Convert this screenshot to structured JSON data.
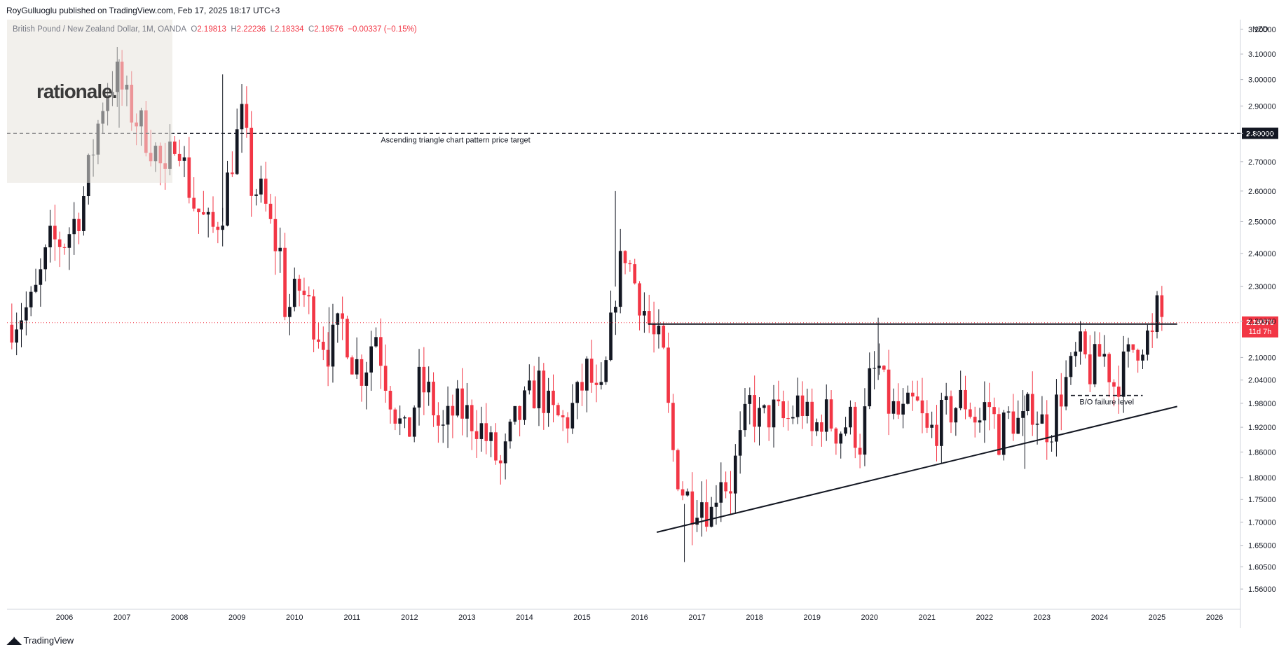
{
  "publisher_line": "RoyGulluoglu published on TradingView.com, Feb 17, 2025 18:17 UTC+3",
  "symbol": {
    "name": "British Pound / New Zealand Dollar, 1M, OANDA",
    "open_label": "O",
    "open": "2.19813",
    "high_label": "H",
    "high": "2.22236",
    "low_label": "L",
    "low": "2.18334",
    "close_label": "C",
    "close": "2.19576",
    "change": "−0.00337 (−0.15%)"
  },
  "currency": "NZD",
  "watermark": "rationale.",
  "footer": "TradingView",
  "colors": {
    "up": "#131722",
    "down": "#f23645",
    "accent": "#f23645",
    "grid": "#e0e3eb"
  },
  "chart_data": {
    "type": "candlestick",
    "y_scale": "log",
    "ylim": [
      1.52,
      3.24
    ],
    "xlim": [
      2005.0,
      2026.45
    ],
    "y_ticks": [
      "3.20000",
      "3.10000",
      "3.00000",
      "2.90000",
      "2.80000",
      "2.70000",
      "2.60000",
      "2.50000",
      "2.40000",
      "2.30000",
      "2.20000",
      "2.10000",
      "2.04000",
      "1.98000",
      "1.92000",
      "1.86000",
      "1.80000",
      "1.75000",
      "1.70000",
      "1.65000",
      "1.60500",
      "1.56000"
    ],
    "x_ticks": [
      "2006",
      "2007",
      "2008",
      "2009",
      "2010",
      "2011",
      "2012",
      "2013",
      "2014",
      "2015",
      "2016",
      "2017",
      "2018",
      "2019",
      "2020",
      "2021",
      "2022",
      "2023",
      "2024",
      "2025",
      "2026"
    ],
    "last_price": "2.19576",
    "countdown": "11d 7h",
    "target_level": 2.8,
    "target_level_label": "2.80000",
    "annotations": {
      "target": "Ascending triangle chart pattern price target",
      "failure": "B/O failure level"
    },
    "resistance": {
      "x": [
        2016.15,
        2025.35
      ],
      "y": 2.192
    },
    "support": {
      "x": [
        2016.3,
        2025.35
      ],
      "y": [
        1.678,
        1.972
      ]
    },
    "bo_failure": {
      "x": [
        2023.5,
        2024.75
      ],
      "y": 2.0
    },
    "path": [
      [
        2005.0,
        2.19
      ],
      [
        2005.45,
        2.25
      ],
      [
        2005.75,
        2.43
      ],
      [
        2006.0,
        2.44
      ],
      [
        2006.3,
        2.55
      ],
      [
        2006.55,
        2.8
      ],
      [
        2006.7,
        2.95
      ],
      [
        2006.9,
        3.02
      ],
      [
        2007.1,
        2.9
      ],
      [
        2007.35,
        2.82
      ],
      [
        2007.6,
        2.73
      ],
      [
        2007.75,
        2.62
      ],
      [
        2007.95,
        2.84
      ],
      [
        2008.1,
        2.66
      ],
      [
        2008.25,
        2.56
      ],
      [
        2008.55,
        2.46
      ],
      [
        2008.75,
        2.55
      ],
      [
        2008.95,
        2.75
      ],
      [
        2009.1,
        2.86
      ],
      [
        2009.25,
        2.62
      ],
      [
        2009.45,
        2.58
      ],
      [
        2009.62,
        2.45
      ],
      [
        2009.75,
        2.4
      ],
      [
        2009.85,
        2.22
      ],
      [
        2010.1,
        2.3
      ],
      [
        2010.35,
        2.2
      ],
      [
        2010.6,
        2.12
      ],
      [
        2010.85,
        2.2
      ],
      [
        2011.0,
        2.1
      ],
      [
        2011.2,
        2.06
      ],
      [
        2011.4,
        2.18
      ],
      [
        2011.6,
        2.04
      ],
      [
        2011.8,
        1.94
      ],
      [
        2011.95,
        1.88
      ],
      [
        2012.15,
        2.03
      ],
      [
        2012.35,
        2.0
      ],
      [
        2012.55,
        1.9
      ],
      [
        2012.8,
        1.97
      ],
      [
        2013.0,
        1.95
      ],
      [
        2013.2,
        1.93
      ],
      [
        2013.45,
        1.86
      ],
      [
        2013.6,
        1.82
      ],
      [
        2013.8,
        1.92
      ],
      [
        2014.0,
        1.97
      ],
      [
        2014.25,
        2.03
      ],
      [
        2014.45,
        1.95
      ],
      [
        2014.7,
        1.93
      ],
      [
        2014.95,
        2.0
      ],
      [
        2015.1,
        2.07
      ],
      [
        2015.3,
        1.96
      ],
      [
        2015.45,
        2.1
      ],
      [
        2015.6,
        2.32
      ],
      [
        2015.75,
        2.41
      ],
      [
        2015.9,
        2.32
      ],
      [
        2016.05,
        2.25
      ],
      [
        2016.25,
        2.15
      ],
      [
        2016.4,
        2.12
      ],
      [
        2016.55,
        1.88
      ],
      [
        2016.72,
        1.78
      ],
      [
        2016.9,
        1.74
      ],
      [
        2017.05,
        1.76
      ],
      [
        2017.25,
        1.72
      ],
      [
        2017.4,
        1.82
      ],
      [
        2017.55,
        1.77
      ],
      [
        2017.75,
        1.88
      ],
      [
        2017.92,
        1.98
      ],
      [
        2018.1,
        1.93
      ],
      [
        2018.3,
        1.96
      ],
      [
        2018.55,
        1.93
      ],
      [
        2018.8,
        1.99
      ],
      [
        2019.0,
        1.9
      ],
      [
        2019.2,
        1.96
      ],
      [
        2019.45,
        1.91
      ],
      [
        2019.65,
        1.94
      ],
      [
        2019.85,
        1.88
      ],
      [
        2020.0,
        2.03
      ],
      [
        2020.15,
        2.08
      ],
      [
        2020.3,
        1.98
      ],
      [
        2020.55,
        1.94
      ],
      [
        2020.8,
        1.98
      ],
      [
        2021.0,
        1.9
      ],
      [
        2021.2,
        1.93
      ],
      [
        2021.45,
        1.97
      ],
      [
        2021.65,
        1.99
      ],
      [
        2021.9,
        1.93
      ],
      [
        2022.05,
        1.99
      ],
      [
        2022.25,
        1.9
      ],
      [
        2022.45,
        1.95
      ],
      [
        2022.65,
        1.92
      ],
      [
        2022.82,
        1.98
      ],
      [
        2023.0,
        1.93
      ],
      [
        2023.15,
        1.92
      ],
      [
        2023.3,
        2.0
      ],
      [
        2023.5,
        2.06
      ],
      [
        2023.65,
        2.12
      ],
      [
        2023.85,
        2.06
      ],
      [
        2024.05,
        2.12
      ],
      [
        2024.25,
        2.03
      ],
      [
        2024.45,
        2.08
      ],
      [
        2024.6,
        2.13
      ],
      [
        2024.8,
        2.16
      ],
      [
        2024.95,
        2.14
      ],
      [
        2025.0,
        2.23
      ],
      [
        2025.12,
        2.196
      ]
    ],
    "wicks": [
      {
        "x": 2006.95,
        "hi": 3.08,
        "lo": 2.82
      },
      {
        "x": 2008.75,
        "hi": 3.02,
        "lo": 2.5
      },
      {
        "x": 2010.6,
        "hi": 2.24,
        "lo": 2.08
      },
      {
        "x": 2015.58,
        "hi": 2.6,
        "lo": 2.3
      },
      {
        "x": 2016.78,
        "hi": 1.74,
        "lo": 1.615
      },
      {
        "x": 2020.15,
        "hi": 2.21,
        "lo": 2.04
      },
      {
        "x": 2022.7,
        "hi": 2.0,
        "lo": 1.82
      }
    ]
  }
}
